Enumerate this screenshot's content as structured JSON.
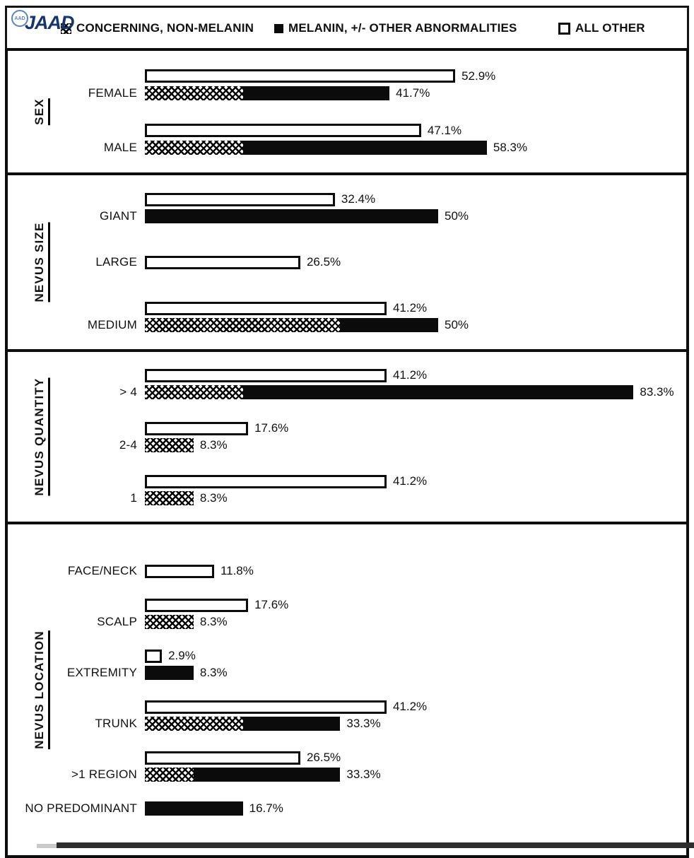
{
  "logo": {
    "circle_text": "AAD",
    "text": "JAAD",
    "text_color": "#16356d",
    "circle_color": "#5b84b8"
  },
  "legend": {
    "items": [
      {
        "label": "CONCERNING, NON-MELANIN",
        "swatch": "crosshatch"
      },
      {
        "label": "MELANIN, +/- OTHER ABNORMALITIES",
        "swatch": "solid"
      },
      {
        "label": "ALL OTHER",
        "swatch": "outline"
      }
    ]
  },
  "colors": {
    "bar_black": "#0b0b0b",
    "border_black": "#0d0d0d",
    "background": "#ffffff"
  },
  "chart_data": {
    "type": "bar",
    "orientation": "horizontal",
    "unit": "percent",
    "xlim": [
      0,
      90
    ],
    "legend_entries": [
      "CONCERNING, NON-MELANIN",
      "MELANIN, +/- OTHER ABNORMALITIES",
      "ALL OTHER"
    ],
    "note": "Each category shows a white ALL OTHER bar and a stacked bar of crosshatch (concerning, non-melanin) + solid black (melanin); stacked segment splits estimated from bar lengths, totals as labeled.",
    "groups": [
      {
        "name": "SEX",
        "rows": [
          {
            "label": "FEMALE",
            "bars": [
              {
                "kind": "all_other",
                "value": 52.9,
                "text": "52.9%"
              },
              {
                "kind": "stacked",
                "total": 41.7,
                "text": "41.7%",
                "segments": [
                  {
                    "pattern": "crosshatch",
                    "value": 16.7
                  },
                  {
                    "pattern": "solid",
                    "value": 25.0
                  }
                ]
              }
            ]
          },
          {
            "label": "MALE",
            "bars": [
              {
                "kind": "all_other",
                "value": 47.1,
                "text": "47.1%"
              },
              {
                "kind": "stacked",
                "total": 58.3,
                "text": "58.3%",
                "segments": [
                  {
                    "pattern": "crosshatch",
                    "value": 16.7
                  },
                  {
                    "pattern": "solid",
                    "value": 41.6
                  }
                ]
              }
            ]
          }
        ]
      },
      {
        "name": "NEVUS SIZE",
        "rows": [
          {
            "label": "GIANT",
            "bars": [
              {
                "kind": "all_other",
                "value": 32.4,
                "text": "32.4%"
              },
              {
                "kind": "stacked",
                "total": 50,
                "text": "50%",
                "segments": [
                  {
                    "pattern": "solid",
                    "value": 50
                  }
                ]
              }
            ]
          },
          {
            "label": "LARGE",
            "bars": [
              {
                "kind": "all_other",
                "value": 26.5,
                "text": "26.5%"
              }
            ]
          },
          {
            "label": "MEDIUM",
            "bars": [
              {
                "kind": "all_other",
                "value": 41.2,
                "text": "41.2%"
              },
              {
                "kind": "stacked",
                "total": 50,
                "text": "50%",
                "segments": [
                  {
                    "pattern": "crosshatch",
                    "value": 33.3
                  },
                  {
                    "pattern": "solid",
                    "value": 16.7
                  }
                ]
              }
            ]
          }
        ]
      },
      {
        "name": "NEVUS QUANTITY",
        "rows": [
          {
            "label": "> 4",
            "bars": [
              {
                "kind": "all_other",
                "value": 41.2,
                "text": "41.2%"
              },
              {
                "kind": "stacked",
                "total": 83.3,
                "text": "83.3%",
                "segments": [
                  {
                    "pattern": "crosshatch",
                    "value": 16.7
                  },
                  {
                    "pattern": "solid",
                    "value": 66.6
                  }
                ]
              }
            ]
          },
          {
            "label": "2-4",
            "bars": [
              {
                "kind": "all_other",
                "value": 17.6,
                "text": "17.6%"
              },
              {
                "kind": "stacked",
                "total": 8.3,
                "text": "8.3%",
                "segments": [
                  {
                    "pattern": "crosshatch",
                    "value": 8.3
                  }
                ]
              }
            ]
          },
          {
            "label": "1",
            "bars": [
              {
                "kind": "all_other",
                "value": 41.2,
                "text": "41.2%"
              },
              {
                "kind": "stacked",
                "total": 8.3,
                "text": "8.3%",
                "segments": [
                  {
                    "pattern": "crosshatch",
                    "value": 8.3
                  }
                ]
              }
            ]
          }
        ]
      },
      {
        "name": "NEVUS LOCATION",
        "rows": [
          {
            "label": "FACE/NECK",
            "bars": [
              {
                "kind": "all_other",
                "value": 11.8,
                "text": "11.8%"
              }
            ]
          },
          {
            "label": "SCALP",
            "bars": [
              {
                "kind": "all_other",
                "value": 17.6,
                "text": "17.6%"
              },
              {
                "kind": "stacked",
                "total": 8.3,
                "text": "8.3%",
                "segments": [
                  {
                    "pattern": "crosshatch",
                    "value": 8.3
                  }
                ]
              }
            ]
          },
          {
            "label": "EXTREMITY",
            "bars": [
              {
                "kind": "all_other",
                "value": 2.9,
                "text": "2.9%"
              },
              {
                "kind": "stacked",
                "total": 8.3,
                "text": "8.3%",
                "segments": [
                  {
                    "pattern": "solid",
                    "value": 8.3
                  }
                ]
              }
            ]
          },
          {
            "label": "TRUNK",
            "bars": [
              {
                "kind": "all_other",
                "value": 41.2,
                "text": "41.2%"
              },
              {
                "kind": "stacked",
                "total": 33.3,
                "text": "33.3%",
                "segments": [
                  {
                    "pattern": "crosshatch",
                    "value": 16.7
                  },
                  {
                    "pattern": "solid",
                    "value": 16.6
                  }
                ]
              }
            ]
          },
          {
            "label": ">1 REGION",
            "bars": [
              {
                "kind": "all_other",
                "value": 26.5,
                "text": "26.5%"
              },
              {
                "kind": "stacked",
                "total": 33.3,
                "text": "33.3%",
                "segments": [
                  {
                    "pattern": "crosshatch",
                    "value": 8.3
                  },
                  {
                    "pattern": "solid",
                    "value": 25.0
                  }
                ]
              }
            ]
          },
          {
            "label": "NO PREDOMINANT",
            "bars": [
              {
                "kind": "stacked",
                "total": 16.7,
                "text": "16.7%",
                "segments": [
                  {
                    "pattern": "solid",
                    "value": 16.7
                  }
                ]
              }
            ]
          }
        ]
      }
    ]
  }
}
